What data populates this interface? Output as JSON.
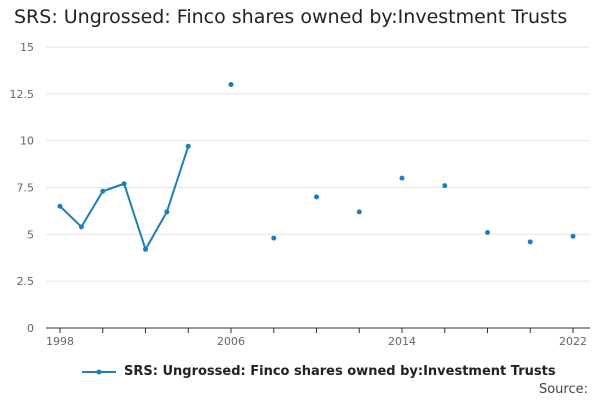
{
  "header": {
    "title": "SRS: Ungrossed: Finco shares owned by:Investment Trusts"
  },
  "footer": {
    "source_label": "Source:"
  },
  "colors": {
    "series": "#1d7eb8",
    "grid": "#e5e5e5",
    "axis": "#333333",
    "tick_text": "#666666"
  },
  "chart_data": {
    "type": "line",
    "title": "SRS: Ungrossed: Finco shares owned by:Investment Trusts",
    "xlabel": "",
    "ylabel": "",
    "xlim": [
      1998,
      2022
    ],
    "ylim": [
      0,
      15
    ],
    "x_ticks": [
      1998,
      2006,
      2014,
      2022
    ],
    "y_ticks": [
      0,
      2.5,
      5,
      7.5,
      10,
      12.5,
      15
    ],
    "y_tick_labels": [
      "0",
      "2.5",
      "5",
      "7.5",
      "10",
      "12.5",
      "15"
    ],
    "grid": true,
    "legend_position": "bottom",
    "series": [
      {
        "name": "SRS: Ungrossed: Finco shares owned by:Investment Trusts",
        "color": "#1d7eb8",
        "points": [
          {
            "x": 1998,
            "y": 6.5
          },
          {
            "x": 1999,
            "y": 5.4
          },
          {
            "x": 2000,
            "y": 7.3
          },
          {
            "x": 2001,
            "y": 7.7
          },
          {
            "x": 2002,
            "y": 4.2
          },
          {
            "x": 2003,
            "y": 6.2
          },
          {
            "x": 2004,
            "y": 9.7
          },
          {
            "x": 2006,
            "y": 13.0
          },
          {
            "x": 2008,
            "y": 4.8
          },
          {
            "x": 2010,
            "y": 7.0
          },
          {
            "x": 2012,
            "y": 6.2
          },
          {
            "x": 2014,
            "y": 8.0
          },
          {
            "x": 2016,
            "y": 7.6
          },
          {
            "x": 2018,
            "y": 5.1
          },
          {
            "x": 2020,
            "y": 4.6
          },
          {
            "x": 2022,
            "y": 4.9
          }
        ]
      }
    ]
  }
}
